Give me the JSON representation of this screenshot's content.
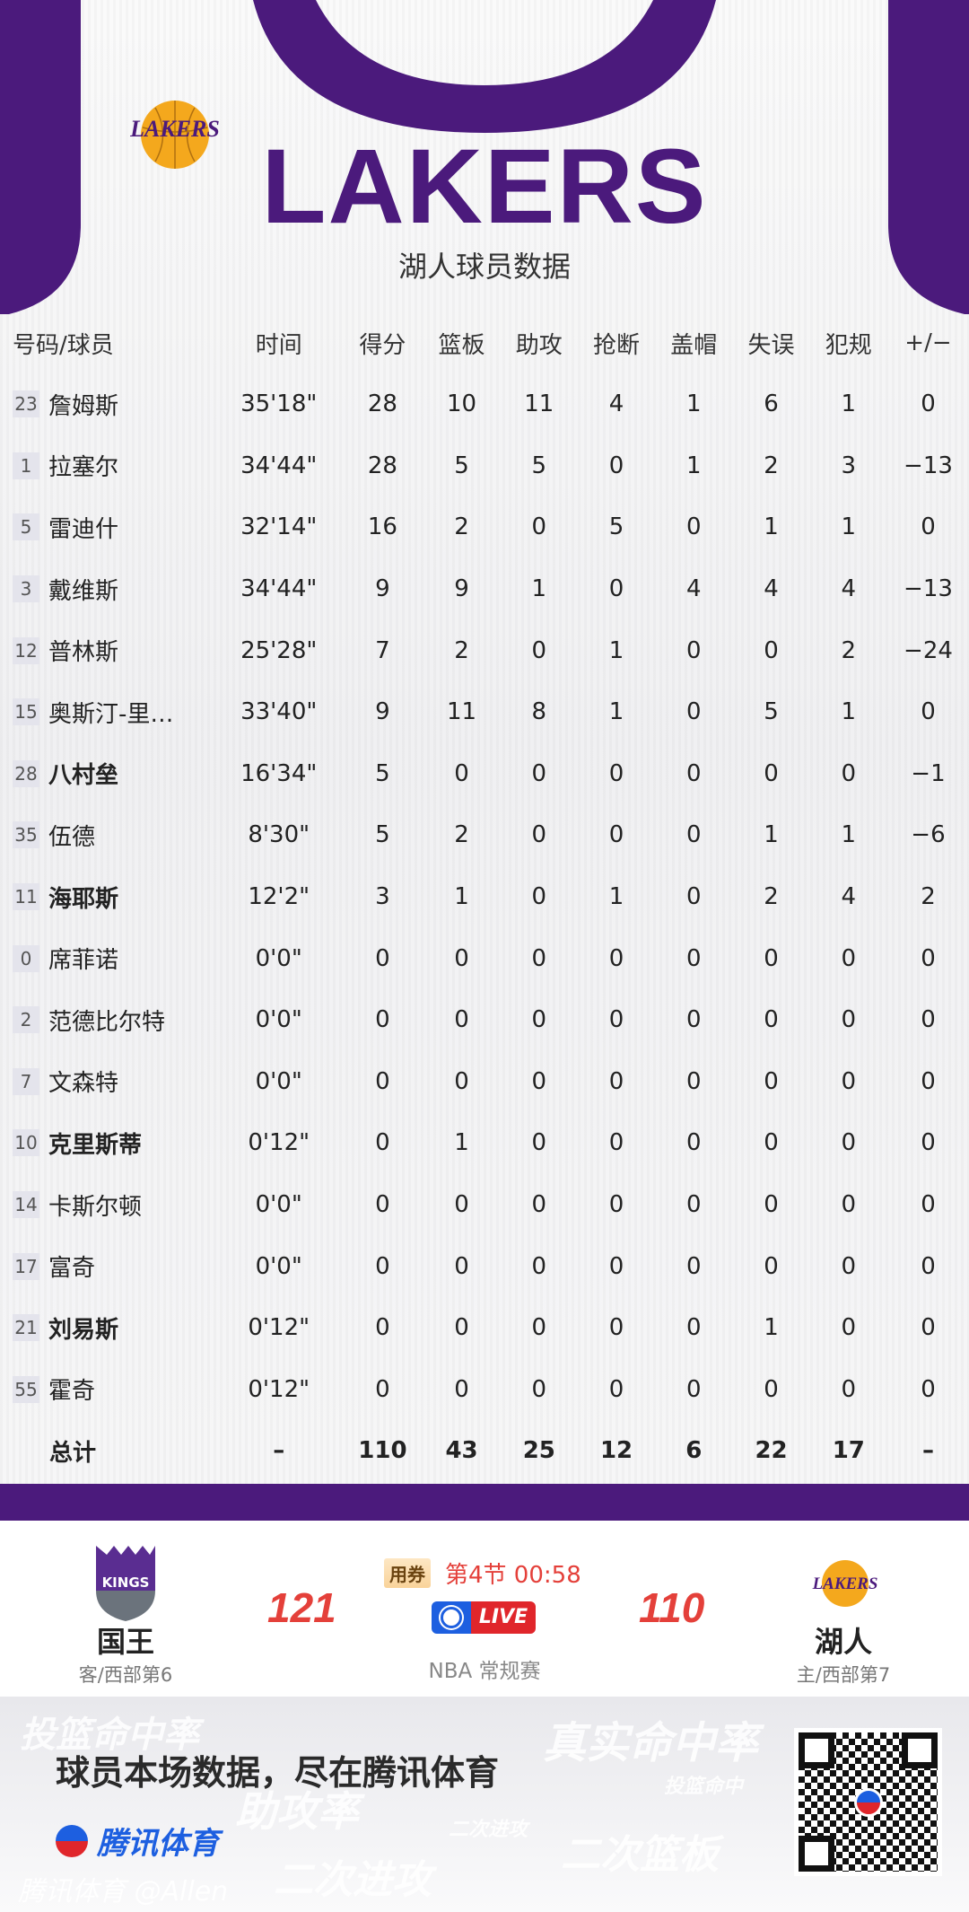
{
  "header": {
    "team_title": "LAKERS",
    "subtitle": "湖人球员数据",
    "logo_text": "LAKERS"
  },
  "colors": {
    "lakers_purple": "#4b1a7c",
    "lakers_gold": "#f4a81d",
    "score_red": "#e4403a",
    "live_red": "#e0262b",
    "tencent_blue": "#1d5fe0"
  },
  "table": {
    "columns": [
      "号码/球员",
      "时间",
      "得分",
      "篮板",
      "助攻",
      "抢断",
      "盖帽",
      "失误",
      "犯规",
      "+/−"
    ],
    "rows": [
      {
        "num": "23",
        "name": "詹姆斯",
        "bold": false,
        "stats": [
          "35'18\"",
          "28",
          "10",
          "11",
          "4",
          "1",
          "6",
          "1",
          "0"
        ]
      },
      {
        "num": "1",
        "name": "拉塞尔",
        "bold": false,
        "stats": [
          "34'44\"",
          "28",
          "5",
          "5",
          "0",
          "1",
          "2",
          "3",
          "−13"
        ]
      },
      {
        "num": "5",
        "name": "雷迪什",
        "bold": false,
        "stats": [
          "32'14\"",
          "16",
          "2",
          "0",
          "5",
          "0",
          "1",
          "1",
          "0"
        ]
      },
      {
        "num": "3",
        "name": "戴维斯",
        "bold": false,
        "stats": [
          "34'44\"",
          "9",
          "9",
          "1",
          "0",
          "4",
          "4",
          "4",
          "−13"
        ]
      },
      {
        "num": "12",
        "name": "普林斯",
        "bold": false,
        "stats": [
          "25'28\"",
          "7",
          "2",
          "0",
          "1",
          "0",
          "0",
          "2",
          "−24"
        ]
      },
      {
        "num": "15",
        "name": "奥斯汀-里…",
        "bold": false,
        "stats": [
          "33'40\"",
          "9",
          "11",
          "8",
          "1",
          "0",
          "5",
          "1",
          "0"
        ]
      },
      {
        "num": "28",
        "name": "八村垒",
        "bold": true,
        "stats": [
          "16'34\"",
          "5",
          "0",
          "0",
          "0",
          "0",
          "0",
          "0",
          "−1"
        ]
      },
      {
        "num": "35",
        "name": "伍德",
        "bold": false,
        "stats": [
          "8'30\"",
          "5",
          "2",
          "0",
          "0",
          "0",
          "1",
          "1",
          "−6"
        ]
      },
      {
        "num": "11",
        "name": "海耶斯",
        "bold": true,
        "stats": [
          "12'2\"",
          "3",
          "1",
          "0",
          "1",
          "0",
          "2",
          "4",
          "2"
        ]
      },
      {
        "num": "0",
        "name": "席菲诺",
        "bold": false,
        "stats": [
          "0'0\"",
          "0",
          "0",
          "0",
          "0",
          "0",
          "0",
          "0",
          "0"
        ]
      },
      {
        "num": "2",
        "name": "范德比尔特",
        "bold": false,
        "stats": [
          "0'0\"",
          "0",
          "0",
          "0",
          "0",
          "0",
          "0",
          "0",
          "0"
        ]
      },
      {
        "num": "7",
        "name": "文森特",
        "bold": false,
        "stats": [
          "0'0\"",
          "0",
          "0",
          "0",
          "0",
          "0",
          "0",
          "0",
          "0"
        ]
      },
      {
        "num": "10",
        "name": "克里斯蒂",
        "bold": true,
        "stats": [
          "0'12\"",
          "0",
          "1",
          "0",
          "0",
          "0",
          "0",
          "0",
          "0"
        ]
      },
      {
        "num": "14",
        "name": "卡斯尔顿",
        "bold": false,
        "stats": [
          "0'0\"",
          "0",
          "0",
          "0",
          "0",
          "0",
          "0",
          "0",
          "0"
        ]
      },
      {
        "num": "17",
        "name": "富奇",
        "bold": false,
        "stats": [
          "0'0\"",
          "0",
          "0",
          "0",
          "0",
          "0",
          "0",
          "0",
          "0"
        ]
      },
      {
        "num": "21",
        "name": "刘易斯",
        "bold": true,
        "stats": [
          "0'12\"",
          "0",
          "0",
          "0",
          "0",
          "0",
          "1",
          "0",
          "0"
        ]
      },
      {
        "num": "55",
        "name": "霍奇",
        "bold": false,
        "stats": [
          "0'12\"",
          "0",
          "0",
          "0",
          "0",
          "0",
          "0",
          "0",
          "0"
        ]
      }
    ],
    "total": {
      "label": "总计",
      "stats": [
        "–",
        "110",
        "43",
        "25",
        "12",
        "6",
        "22",
        "17",
        "–"
      ]
    }
  },
  "scoreboard": {
    "away": {
      "name": "国王",
      "sub": "客/西部第6",
      "score": "121",
      "logo_text": "SACRAMENTO KINGS"
    },
    "home": {
      "name": "湖人",
      "sub": "主/西部第7",
      "score": "110",
      "logo_text": "LAKERS"
    },
    "coupon": "用券",
    "period": "第4节 00:58",
    "live": "LIVE",
    "league": "NBA 常规赛"
  },
  "footer": {
    "slogan": "球员本场数据，尽在腾讯体育",
    "brand": "腾讯体育",
    "watermark_user": "腾讯体育 @Allen",
    "bg_words": [
      "投篮命中率",
      "真实命中率",
      "投篮命中",
      "助攻率",
      "二次进攻",
      "二次进攻",
      "二次篮板"
    ]
  }
}
